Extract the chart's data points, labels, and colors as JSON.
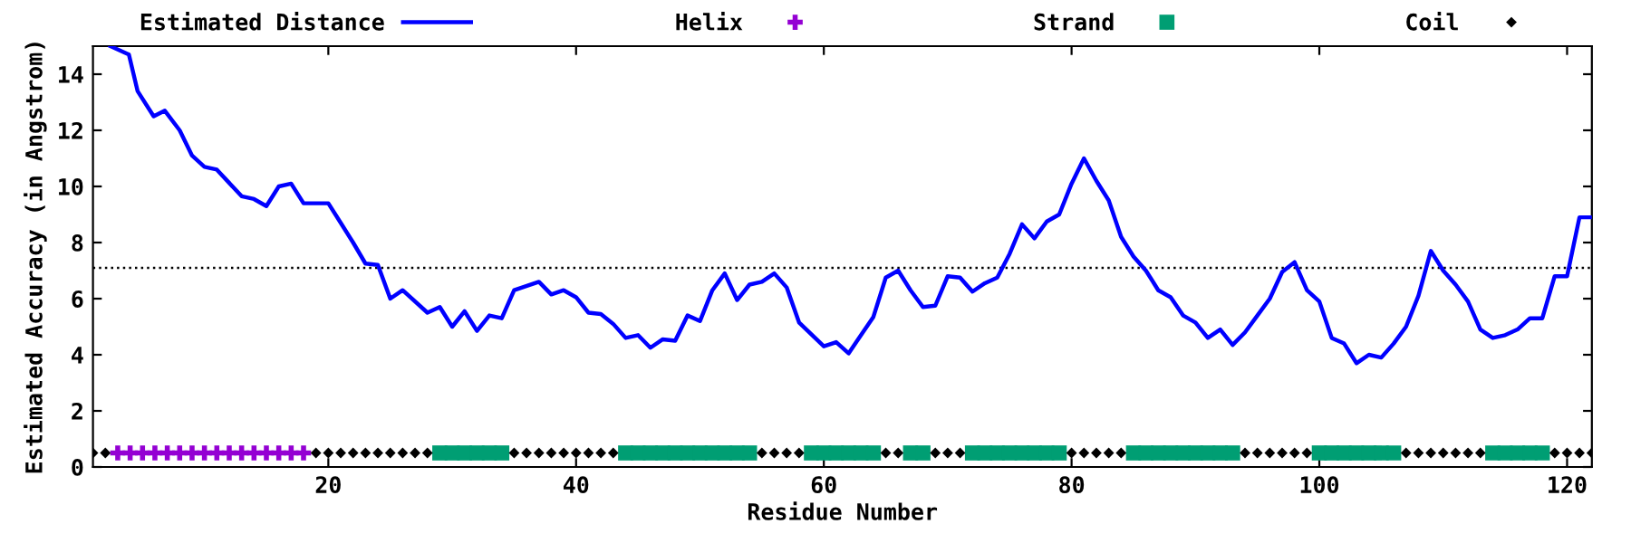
{
  "chart_data": {
    "type": "line",
    "xlabel": "Residue Number",
    "ylabel": "Estimated Accuracy (in Angstrom)",
    "xlim": [
      1,
      122
    ],
    "xticks": [
      20,
      40,
      60,
      80,
      100,
      120
    ],
    "ylim": [
      0,
      15
    ],
    "yticks": [
      0,
      2,
      4,
      6,
      8,
      10,
      12,
      14
    ],
    "grid": false,
    "legend": "top",
    "ref_lines": [
      {
        "axis": "y",
        "value": 7.1,
        "color": "#000000",
        "line_style": "dotted"
      }
    ],
    "series": [
      {
        "name": "Estimated Distance",
        "color": "#0000ff",
        "marker": "none",
        "line_style": "solid",
        "x": [
          2.4,
          3.9,
          4.6,
          5.9,
          6.8,
          8,
          9,
          10,
          11,
          13,
          14,
          15,
          16,
          17,
          18,
          20,
          21,
          22,
          23,
          24,
          25,
          26,
          28,
          29,
          30,
          31,
          32,
          33,
          34,
          35,
          37,
          38,
          39,
          40,
          41,
          42,
          43,
          44,
          45,
          46,
          47,
          48,
          49,
          50,
          51,
          52,
          53,
          54,
          55,
          56,
          57,
          58,
          60,
          61,
          62,
          63,
          64,
          65,
          66,
          67,
          68,
          69,
          70,
          71,
          72,
          73,
          74,
          75,
          76,
          77,
          78,
          79,
          80,
          81,
          82,
          83,
          84,
          85,
          86,
          87,
          88,
          89,
          90,
          91,
          92,
          93,
          94,
          95,
          96,
          97,
          98,
          99,
          100,
          101,
          102,
          103,
          104,
          105,
          106,
          107,
          108,
          109,
          110,
          111,
          112,
          113,
          114,
          115,
          116,
          117,
          118,
          119,
          120,
          121,
          122
        ],
        "values": [
          15.0,
          14.7,
          13.4,
          12.5,
          12.7,
          12.0,
          11.1,
          10.7,
          10.6,
          9.65,
          9.55,
          9.3,
          10.0,
          10.1,
          9.4,
          9.4,
          8.7,
          8.0,
          7.25,
          7.2,
          6.0,
          6.3,
          5.5,
          5.7,
          5.0,
          5.55,
          4.85,
          5.4,
          5.3,
          6.3,
          6.6,
          6.15,
          6.3,
          6.05,
          5.5,
          5.45,
          5.1,
          4.6,
          4.7,
          4.25,
          4.55,
          4.5,
          5.4,
          5.2,
          6.3,
          6.9,
          5.95,
          6.5,
          6.6,
          6.9,
          6.4,
          5.15,
          4.3,
          4.45,
          4.05,
          4.7,
          5.35,
          6.75,
          7.0,
          6.3,
          5.7,
          5.75,
          6.8,
          6.75,
          6.25,
          6.55,
          6.75,
          7.6,
          8.65,
          8.15,
          8.75,
          9.0,
          10.1,
          11.0,
          10.2,
          9.5,
          8.2,
          7.5,
          7.0,
          6.3,
          6.05,
          5.4,
          5.15,
          4.6,
          4.9,
          4.35,
          4.8,
          5.4,
          6.0,
          6.95,
          7.3,
          6.3,
          5.9,
          4.6,
          4.4,
          3.7,
          4.0,
          3.9,
          4.4,
          5.0,
          6.1,
          7.7,
          7.0,
          6.5,
          5.9,
          4.9,
          4.6,
          4.7,
          4.9,
          5.3,
          5.3,
          6.8,
          6.8,
          8.9,
          8.9
        ]
      },
      {
        "name": "Helix",
        "type": "scatter",
        "color": "#9400d3",
        "marker": "cross",
        "x": [
          3,
          4,
          5,
          6,
          7,
          8,
          9,
          10,
          11,
          12,
          13,
          14,
          15,
          16,
          17,
          18
        ],
        "values": [
          0.5,
          0.5,
          0.5,
          0.5,
          0.5,
          0.5,
          0.5,
          0.5,
          0.5,
          0.5,
          0.5,
          0.5,
          0.5,
          0.5,
          0.5,
          0.5
        ]
      },
      {
        "name": "Strand",
        "type": "scatter",
        "color": "#009e73",
        "marker": "square",
        "x": [
          29,
          30,
          31,
          32,
          33,
          34,
          44,
          45,
          46,
          47,
          48,
          49,
          50,
          51,
          52,
          53,
          54,
          59,
          60,
          61,
          62,
          63,
          64,
          67,
          68,
          72,
          73,
          74,
          75,
          76,
          77,
          78,
          79,
          85,
          86,
          87,
          88,
          89,
          90,
          91,
          92,
          93,
          100,
          101,
          102,
          103,
          104,
          105,
          106,
          114,
          115,
          116,
          117,
          118
        ],
        "values": [
          0.5,
          0.5,
          0.5,
          0.5,
          0.5,
          0.5,
          0.5,
          0.5,
          0.5,
          0.5,
          0.5,
          0.5,
          0.5,
          0.5,
          0.5,
          0.5,
          0.5,
          0.5,
          0.5,
          0.5,
          0.5,
          0.5,
          0.5,
          0.5,
          0.5,
          0.5,
          0.5,
          0.5,
          0.5,
          0.5,
          0.5,
          0.5,
          0.5,
          0.5,
          0.5,
          0.5,
          0.5,
          0.5,
          0.5,
          0.5,
          0.5,
          0.5,
          0.5,
          0.5,
          0.5,
          0.5,
          0.5,
          0.5,
          0.5,
          0.5,
          0.5,
          0.5,
          0.5,
          0.5
        ]
      },
      {
        "name": "Coil",
        "type": "scatter",
        "color": "#000000",
        "marker": "diamond",
        "x": [
          1,
          2,
          19,
          20,
          21,
          22,
          23,
          24,
          25,
          26,
          27,
          28,
          35,
          36,
          37,
          38,
          39,
          40,
          41,
          42,
          43,
          55,
          56,
          57,
          58,
          65,
          66,
          69,
          70,
          71,
          80,
          81,
          82,
          83,
          84,
          94,
          95,
          96,
          97,
          98,
          99,
          107,
          108,
          109,
          110,
          111,
          112,
          113,
          119,
          120,
          121,
          122
        ],
        "values": [
          0.5,
          0.5,
          0.5,
          0.5,
          0.5,
          0.5,
          0.5,
          0.5,
          0.5,
          0.5,
          0.5,
          0.5,
          0.5,
          0.5,
          0.5,
          0.5,
          0.5,
          0.5,
          0.5,
          0.5,
          0.5,
          0.5,
          0.5,
          0.5,
          0.5,
          0.5,
          0.5,
          0.5,
          0.5,
          0.5,
          0.5,
          0.5,
          0.5,
          0.5,
          0.5,
          0.5,
          0.5,
          0.5,
          0.5,
          0.5,
          0.5,
          0.5,
          0.5,
          0.5,
          0.5,
          0.5,
          0.5,
          0.5,
          0.5,
          0.5,
          0.5,
          0.5
        ]
      }
    ]
  }
}
